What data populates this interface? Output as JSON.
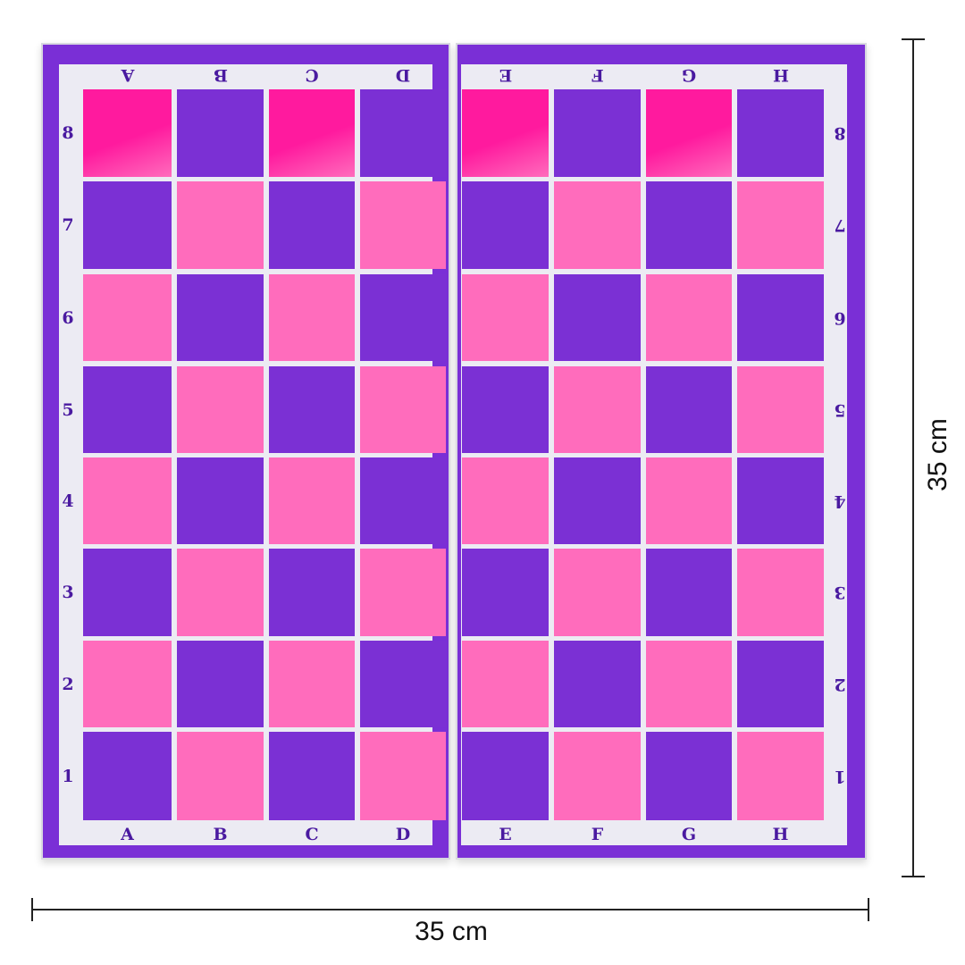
{
  "board": {
    "files": [
      "A",
      "B",
      "C",
      "D",
      "E",
      "F",
      "G",
      "H"
    ],
    "ranks": [
      "8",
      "7",
      "6",
      "5",
      "4",
      "3",
      "2",
      "1"
    ],
    "colors": {
      "border": "#7a2fd6",
      "dark": "#7b30d4",
      "light": "#ff6cbc",
      "light_top_corner": "#ff1a9e",
      "frame": "#ecebf3",
      "label": "#4a1aa0"
    }
  },
  "dimensions": {
    "width_label": "35 cm",
    "height_label": "35 cm"
  }
}
